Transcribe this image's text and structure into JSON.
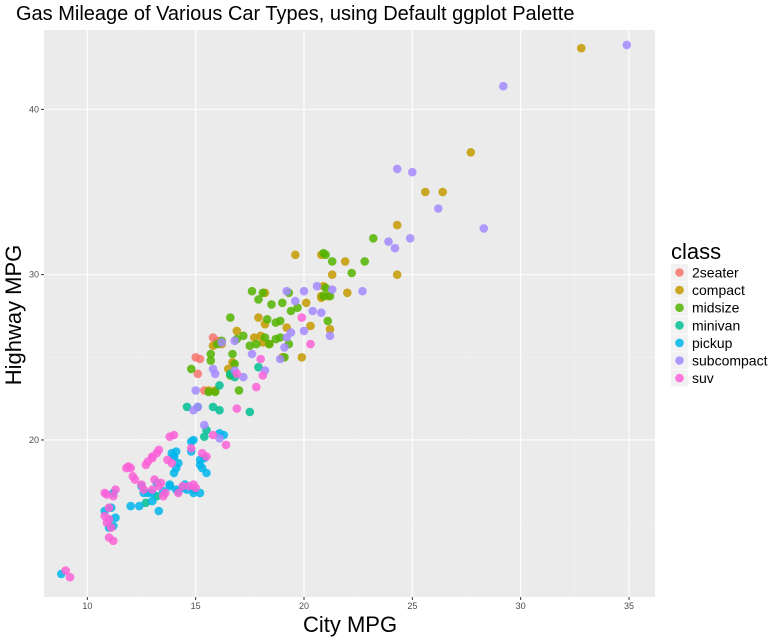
{
  "chart_data": {
    "type": "scatter",
    "title": "Gas Mileage of Various Car Types, using Default ggplot Palette",
    "xlabel": "City MPG",
    "ylabel": "Highway MPG",
    "xlim": [
      8,
      36.2
    ],
    "ylim": [
      10.5,
      44.8
    ],
    "x_ticks": [
      10,
      15,
      20,
      25,
      30,
      35
    ],
    "y_ticks": [
      20,
      30,
      40
    ],
    "x_tick_labels": [
      "10",
      "15",
      "20",
      "25",
      "30",
      "35"
    ],
    "y_tick_labels": [
      "20",
      "30",
      "40"
    ],
    "grid": true,
    "legend_position": "right",
    "legend_title": "class",
    "colors": {
      "panel": "#ebebeb",
      "grid_major": "#ffffff",
      "grid_minor": "#f2f2f2"
    },
    "series": [
      {
        "name": "2seater",
        "color": "#F8766D",
        "points": [
          [
            15.0,
            25.0
          ],
          [
            15.2,
            24.9
          ],
          [
            16.0,
            26.0
          ],
          [
            15.8,
            26.2
          ],
          [
            15.1,
            24.0
          ],
          [
            15.4,
            23.0
          ]
        ]
      },
      {
        "name": "compact",
        "color": "#C49A00",
        "points": [
          [
            32.8,
            43.7
          ],
          [
            27.7,
            37.4
          ],
          [
            25.6,
            35.0
          ],
          [
            26.4,
            35.0
          ],
          [
            24.3,
            33.0
          ],
          [
            24.3,
            30.0
          ],
          [
            19.6,
            31.2
          ],
          [
            20.8,
            31.2
          ],
          [
            21.3,
            30.0
          ],
          [
            21.9,
            30.8
          ],
          [
            20.9,
            29.3
          ],
          [
            20.8,
            28.7
          ],
          [
            21.1,
            28.7
          ],
          [
            22.0,
            28.9
          ],
          [
            20.8,
            28.6
          ],
          [
            20.1,
            28.3
          ],
          [
            20.3,
            26.9
          ],
          [
            21.2,
            26.7
          ],
          [
            19.9,
            25.0
          ],
          [
            19.2,
            26.8
          ],
          [
            18.2,
            27.0
          ],
          [
            17.9,
            27.4
          ],
          [
            18.0,
            26.3
          ],
          [
            17.7,
            26.2
          ],
          [
            18.1,
            25.9
          ],
          [
            18.4,
            25.8
          ],
          [
            16.9,
            26.6
          ],
          [
            16.2,
            25.8
          ],
          [
            15.8,
            25.7
          ],
          [
            16.7,
            24.7
          ],
          [
            16.5,
            24.3
          ],
          [
            15.9,
            23.0
          ],
          [
            15.6,
            23.0
          ],
          [
            18.2,
            28.9
          ],
          [
            19.0,
            25.0
          ]
        ]
      },
      {
        "name": "midsize",
        "color": "#53B400",
        "points": [
          [
            23.2,
            32.2
          ],
          [
            22.8,
            30.8
          ],
          [
            22.2,
            30.1
          ],
          [
            21.3,
            30.8
          ],
          [
            20.9,
            31.3
          ],
          [
            21.0,
            31.2
          ],
          [
            21.0,
            29.2
          ],
          [
            21.2,
            28.7
          ],
          [
            20.9,
            28.7
          ],
          [
            21.1,
            27.2
          ],
          [
            19.3,
            28.9
          ],
          [
            19.7,
            28.0
          ],
          [
            19.4,
            27.8
          ],
          [
            19.0,
            28.3
          ],
          [
            18.9,
            27.2
          ],
          [
            18.7,
            27.1
          ],
          [
            18.3,
            27.3
          ],
          [
            18.1,
            28.9
          ],
          [
            17.9,
            28.5
          ],
          [
            17.6,
            29.0
          ],
          [
            18.5,
            28.2
          ],
          [
            18.9,
            26.2
          ],
          [
            19.3,
            25.8
          ],
          [
            19.1,
            25.0
          ],
          [
            18.4,
            25.8
          ],
          [
            18.2,
            26.2
          ],
          [
            17.8,
            25.8
          ],
          [
            17.5,
            25.7
          ],
          [
            17.2,
            26.3
          ],
          [
            16.9,
            26.1
          ],
          [
            16.6,
            27.4
          ],
          [
            16.2,
            26.0
          ],
          [
            16.0,
            25.8
          ],
          [
            15.7,
            24.8
          ],
          [
            15.7,
            25.2
          ],
          [
            14.8,
            24.3
          ],
          [
            16.8,
            24.6
          ],
          [
            16.6,
            23.9
          ],
          [
            16.7,
            25.2
          ],
          [
            15.9,
            22.9
          ],
          [
            15.6,
            22.9
          ],
          [
            17.0,
            23.0
          ],
          [
            18.7,
            26.1
          ]
        ]
      },
      {
        "name": "minivan",
        "color": "#00C094",
        "points": [
          [
            14.6,
            22.0
          ],
          [
            15.1,
            22.0
          ],
          [
            15.8,
            22.0
          ],
          [
            16.1,
            21.8
          ],
          [
            15.5,
            20.6
          ],
          [
            15.4,
            20.2
          ],
          [
            16.1,
            23.3
          ],
          [
            16.8,
            23.8
          ],
          [
            16.6,
            24.0
          ],
          [
            17.5,
            21.7
          ],
          [
            17.9,
            24.4
          ],
          [
            13.2,
            16.6
          ],
          [
            12.7,
            16.2
          ]
        ]
      },
      {
        "name": "pickup",
        "color": "#00B6EB",
        "points": [
          [
            8.8,
            11.9
          ],
          [
            11.0,
            14.7
          ],
          [
            11.0,
            15.2
          ],
          [
            11.1,
            15.9
          ],
          [
            11.2,
            16.8
          ],
          [
            11.3,
            15.3
          ],
          [
            12.0,
            16.0
          ],
          [
            12.4,
            16.0
          ],
          [
            12.8,
            16.8
          ],
          [
            13.0,
            16.8
          ],
          [
            13.3,
            15.7
          ],
          [
            13.5,
            16.9
          ],
          [
            13.8,
            17.2
          ],
          [
            14.1,
            17.0
          ],
          [
            14.1,
            18.3
          ],
          [
            14.2,
            18.6
          ],
          [
            14.0,
            19.0
          ],
          [
            14.1,
            19.3
          ],
          [
            13.9,
            19.2
          ],
          [
            14.0,
            19.0
          ],
          [
            14.8,
            19.9
          ],
          [
            14.9,
            20.0
          ],
          [
            15.2,
            18.5
          ],
          [
            15.2,
            18.8
          ],
          [
            15.4,
            18.9
          ],
          [
            14.0,
            18.0
          ],
          [
            13.8,
            17.3
          ],
          [
            15.2,
            16.8
          ],
          [
            14.2,
            16.9
          ],
          [
            14.9,
            17.0
          ],
          [
            14.5,
            17.3
          ],
          [
            14.9,
            16.8
          ],
          [
            15.5,
            18.0
          ],
          [
            14.6,
            17.0
          ],
          [
            13.2,
            17.4
          ],
          [
            12.5,
            17.2
          ],
          [
            12.6,
            16.8
          ],
          [
            14.4,
            17.1
          ],
          [
            16.1,
            20.4
          ],
          [
            16.3,
            20.3
          ],
          [
            11.2,
            14.8
          ],
          [
            10.8,
            15.7
          ],
          [
            13.0,
            16.3
          ],
          [
            14.8,
            19.3
          ],
          [
            15.3,
            18.3
          ]
        ]
      },
      {
        "name": "subcompact",
        "color": "#A58AFF",
        "points": [
          [
            34.9,
            43.9
          ],
          [
            29.2,
            41.4
          ],
          [
            24.3,
            36.4
          ],
          [
            25.0,
            36.2
          ],
          [
            26.2,
            34.0
          ],
          [
            28.3,
            32.8
          ],
          [
            24.9,
            32.2
          ],
          [
            24.2,
            31.6
          ],
          [
            23.9,
            32.0
          ],
          [
            22.7,
            29.0
          ],
          [
            21.3,
            29.1
          ],
          [
            20.6,
            29.3
          ],
          [
            20.0,
            29.0
          ],
          [
            19.2,
            29.0
          ],
          [
            19.2,
            26.2
          ],
          [
            20.8,
            27.7
          ],
          [
            20.4,
            27.8
          ],
          [
            20.0,
            26.6
          ],
          [
            21.2,
            26.3
          ],
          [
            19.4,
            26.5
          ],
          [
            19.1,
            25.6
          ],
          [
            18.9,
            24.9
          ],
          [
            17.6,
            25.2
          ],
          [
            16.8,
            26.0
          ],
          [
            16.2,
            25.9
          ],
          [
            15.8,
            24.3
          ],
          [
            15.9,
            24.0
          ],
          [
            15.0,
            23.0
          ],
          [
            15.1,
            22.0
          ],
          [
            15.4,
            20.9
          ],
          [
            16.1,
            20.1
          ],
          [
            14.9,
            21.8
          ],
          [
            17.2,
            23.8
          ],
          [
            16.8,
            24.2
          ],
          [
            18.2,
            24.2
          ],
          [
            19.6,
            28.4
          ]
        ]
      },
      {
        "name": "suv",
        "color": "#FB61D7",
        "points": [
          [
            9.0,
            12.1
          ],
          [
            9.2,
            11.7
          ],
          [
            10.8,
            16.8
          ],
          [
            10.9,
            16.7
          ],
          [
            11.0,
            15.9
          ],
          [
            11.2,
            16.6
          ],
          [
            11.3,
            17.0
          ],
          [
            10.8,
            15.4
          ],
          [
            10.9,
            15.0
          ],
          [
            11.0,
            15.2
          ],
          [
            11.1,
            14.7
          ],
          [
            11.0,
            14.1
          ],
          [
            11.2,
            13.9
          ],
          [
            11.8,
            18.3
          ],
          [
            11.9,
            18.4
          ],
          [
            12.0,
            18.3
          ],
          [
            12.2,
            17.6
          ],
          [
            12.1,
            17.8
          ],
          [
            12.5,
            17.3
          ],
          [
            12.6,
            17.0
          ],
          [
            12.7,
            18.5
          ],
          [
            12.8,
            18.7
          ],
          [
            13.0,
            19.0
          ],
          [
            13.2,
            19.2
          ],
          [
            13.3,
            19.4
          ],
          [
            13.0,
            18.9
          ],
          [
            13.1,
            17.6
          ],
          [
            13.3,
            17.2
          ],
          [
            13.4,
            17.4
          ],
          [
            13.0,
            17.0
          ],
          [
            13.5,
            16.6
          ],
          [
            13.7,
            18.8
          ],
          [
            13.9,
            18.6
          ],
          [
            13.8,
            20.2
          ],
          [
            14.0,
            20.3
          ],
          [
            14.4,
            17.2
          ],
          [
            14.7,
            17.2
          ],
          [
            14.9,
            17.3
          ],
          [
            15.0,
            17.1
          ],
          [
            14.8,
            19.5
          ],
          [
            15.3,
            19.2
          ],
          [
            15.5,
            19.0
          ],
          [
            15.8,
            20.3
          ],
          [
            16.4,
            19.7
          ],
          [
            16.9,
            21.9
          ],
          [
            16.9,
            24.0
          ],
          [
            17.8,
            23.2
          ],
          [
            18.1,
            23.9
          ],
          [
            19.9,
            27.4
          ],
          [
            20.3,
            25.8
          ],
          [
            18.0,
            24.9
          ],
          [
            13.6,
            16.8
          ],
          [
            14.2,
            16.8
          ]
        ]
      }
    ]
  }
}
